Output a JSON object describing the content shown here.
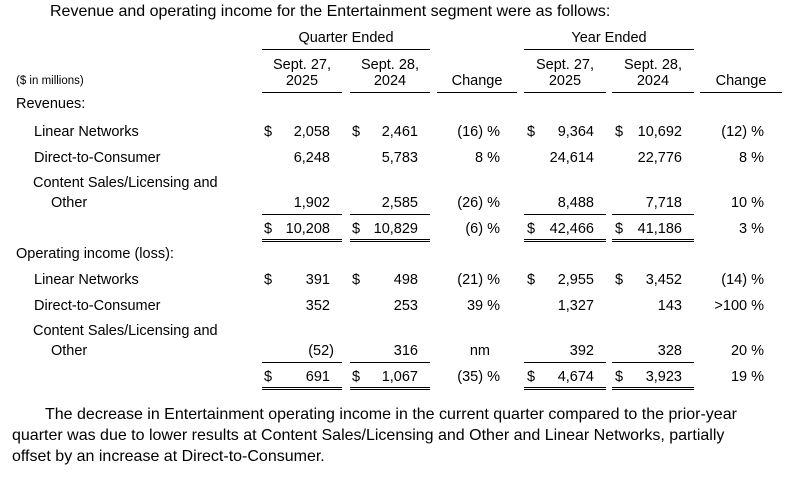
{
  "intro": "Revenue and operating income for the Entertainment segment were as follows:",
  "groups": {
    "quarter": "Quarter Ended",
    "year": "Year Ended"
  },
  "columns": {
    "q2025_line1": "Sept. 27,",
    "q2025_line2": "2025",
    "q2024_line1": "Sept. 28,",
    "q2024_line2": "2024",
    "q_change": "Change",
    "y2025_line1": "Sept. 27,",
    "y2025_line2": "2025",
    "y2024_line1": "Sept. 28,",
    "y2024_line2": "2024",
    "y_change": "Change"
  },
  "units": "($ in millions)",
  "currency": "$",
  "sections": {
    "revenues": "Revenues:",
    "operating_income": "Operating income (loss):"
  },
  "rows": {
    "rev_linear": {
      "label": "Linear Networks",
      "q2025": "2,058",
      "q2024": "2,461",
      "qchg": "(16) %",
      "y2025": "9,364",
      "y2024": "10,692",
      "ychg": "(12) %"
    },
    "rev_dtc": {
      "label": "Direct-to-Consumer",
      "q2025": "6,248",
      "q2024": "5,783",
      "qchg": "8 %",
      "y2025": "24,614",
      "y2024": "22,776",
      "ychg": "8 %"
    },
    "rev_content": {
      "label_line1": "Content Sales/Licensing and",
      "label_line2": "Other",
      "q2025": "1,902",
      "q2024": "2,585",
      "qchg": "(26) %",
      "y2025": "8,488",
      "y2024": "7,718",
      "ychg": "10 %"
    },
    "rev_total": {
      "q2025": "10,208",
      "q2024": "10,829",
      "qchg": "(6) %",
      "y2025": "42,466",
      "y2024": "41,186",
      "ychg": "3 %"
    },
    "oi_linear": {
      "label": "Linear Networks",
      "q2025": "391",
      "q2024": "498",
      "qchg": "(21) %",
      "y2025": "2,955",
      "y2024": "3,452",
      "ychg": "(14) %"
    },
    "oi_dtc": {
      "label": "Direct-to-Consumer",
      "q2025": "352",
      "q2024": "253",
      "qchg": "39 %",
      "y2025": "1,327",
      "y2024": "143",
      "ychg": ">100 %"
    },
    "oi_content": {
      "label_line1": "Content Sales/Licensing and",
      "label_line2": "Other",
      "q2025": "(52)",
      "q2024": "316",
      "qchg": "nm",
      "y2025": "392",
      "y2024": "328",
      "ychg": "20 %"
    },
    "oi_total": {
      "q2025": "691",
      "q2024": "1,067",
      "qchg": "(35) %",
      "y2025": "4,674",
      "y2024": "3,923",
      "ychg": "19 %"
    }
  },
  "paragraph_line1": "The decrease in Entertainment operating income in the current quarter compared to the prior-year",
  "paragraph_line2": "quarter was due to lower results at Content Sales/Licensing and Other and Linear Networks, partially",
  "paragraph_line3": "offset by an increase at Direct-to-Consumer."
}
